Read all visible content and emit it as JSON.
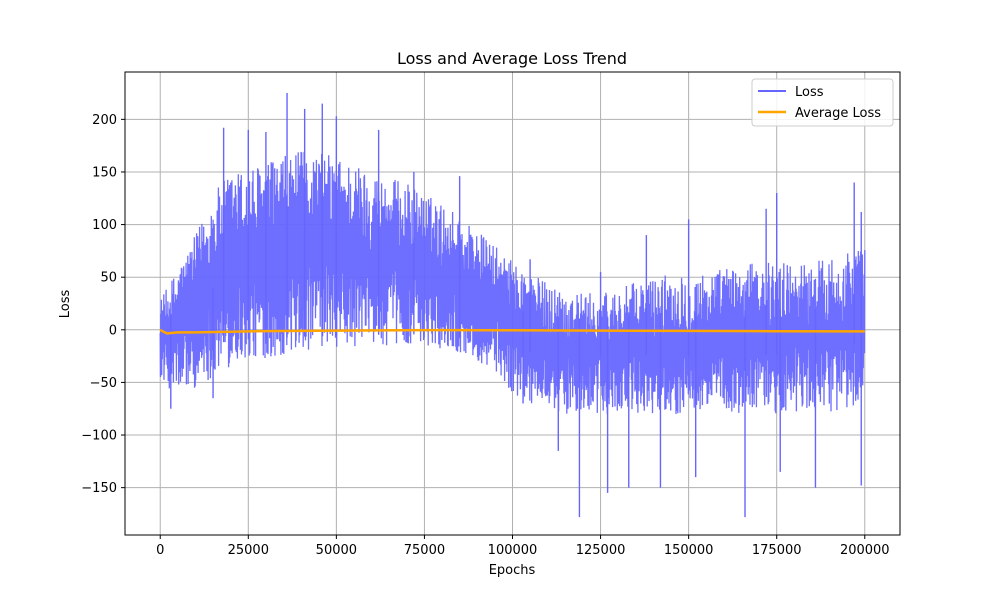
{
  "chart_data": {
    "type": "line",
    "title": "Loss and Average Loss Trend",
    "xlabel": "Epochs",
    "ylabel": "Loss",
    "xlim": [
      -10000,
      210000
    ],
    "ylim": [
      -195,
      245
    ],
    "x_ticks": [
      0,
      25000,
      50000,
      75000,
      100000,
      125000,
      150000,
      175000,
      200000
    ],
    "x_tick_labels": [
      "0",
      "25000",
      "50000",
      "75000",
      "100000",
      "125000",
      "150000",
      "175000",
      "200000"
    ],
    "y_ticks": [
      -150,
      -100,
      -50,
      0,
      50,
      100,
      150,
      200
    ],
    "y_tick_labels": [
      "−150",
      "−100",
      "−50",
      "0",
      "50",
      "100",
      "150",
      "200"
    ],
    "grid": true,
    "legend_position": "top-right",
    "series": [
      {
        "name": "Loss",
        "color": "#6666ff",
        "kind": "envelope",
        "x": [
          0,
          2000,
          5000,
          10000,
          15000,
          20000,
          25000,
          30000,
          35000,
          40000,
          45000,
          50000,
          55000,
          60000,
          65000,
          70000,
          75000,
          80000,
          85000,
          90000,
          95000,
          100000,
          105000,
          110000,
          115000,
          120000,
          125000,
          130000,
          135000,
          140000,
          145000,
          150000,
          155000,
          160000,
          165000,
          170000,
          175000,
          180000,
          185000,
          190000,
          195000,
          200000
        ],
        "upper": [
          30,
          40,
          60,
          90,
          130,
          150,
          155,
          160,
          165,
          170,
          170,
          165,
          160,
          150,
          145,
          140,
          130,
          120,
          110,
          95,
          80,
          65,
          55,
          45,
          40,
          35,
          35,
          40,
          45,
          50,
          55,
          55,
          55,
          60,
          60,
          65,
          65,
          65,
          65,
          70,
          75,
          80
        ],
        "lower": [
          -45,
          -55,
          -60,
          -55,
          -45,
          -35,
          -30,
          -27,
          -25,
          -22,
          -20,
          -18,
          -17,
          -16,
          -15,
          -14,
          -15,
          -18,
          -22,
          -30,
          -40,
          -60,
          -70,
          -75,
          -80,
          -80,
          -80,
          -80,
          -80,
          -80,
          -80,
          -80,
          -80,
          -80,
          -80,
          -78,
          -80,
          -80,
          -78,
          -78,
          -75,
          -72
        ],
        "spikes_up": [
          [
            18000,
            192
          ],
          [
            25000,
            190
          ],
          [
            30000,
            188
          ],
          [
            36000,
            225
          ],
          [
            41000,
            210
          ],
          [
            46000,
            215
          ],
          [
            50000,
            203
          ],
          [
            62000,
            190
          ],
          [
            72000,
            150
          ],
          [
            85000,
            146
          ],
          [
            105000,
            67
          ],
          [
            125000,
            55
          ],
          [
            138000,
            90
          ],
          [
            150000,
            105
          ],
          [
            172000,
            115
          ],
          [
            175000,
            130
          ],
          [
            197000,
            140
          ],
          [
            199000,
            112
          ]
        ],
        "spikes_down": [
          [
            3000,
            -75
          ],
          [
            15000,
            -65
          ],
          [
            103000,
            -70
          ],
          [
            113000,
            -115
          ],
          [
            119000,
            -178
          ],
          [
            127000,
            -155
          ],
          [
            133000,
            -150
          ],
          [
            142000,
            -150
          ],
          [
            152000,
            -140
          ],
          [
            166000,
            -178
          ],
          [
            176000,
            -135
          ],
          [
            186000,
            -150
          ],
          [
            199000,
            -148
          ]
        ]
      },
      {
        "name": "Average Loss",
        "color": "#ffa500",
        "kind": "line",
        "x": [
          0,
          1000,
          2000,
          3000,
          5000,
          10000,
          20000,
          30000,
          50000,
          75000,
          100000,
          125000,
          150000,
          175000,
          200000
        ],
        "values": [
          0,
          -2,
          -3.5,
          -3,
          -2.5,
          -2.5,
          -1.8,
          -1.2,
          -0.8,
          -0.3,
          -0.5,
          -0.8,
          -1.0,
          -1.3,
          -1.5
        ]
      }
    ]
  }
}
